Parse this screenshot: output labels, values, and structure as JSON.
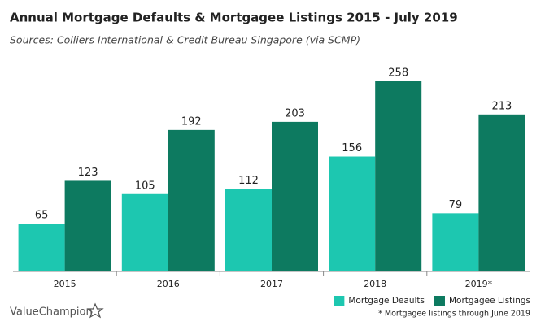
{
  "chart_data": {
    "type": "bar",
    "title": "Annual Mortgage Defaults & Mortgagee Listings 2015 - July 2019",
    "subtitle": "Sources: Colliers International & Credit Bureau Singapore (via SCMP)",
    "categories": [
      "2015",
      "2016",
      "2017",
      "2018",
      "2019*"
    ],
    "series": [
      {
        "name": "Mortgage Deaults",
        "color": "#1dc7b0",
        "values": [
          65,
          105,
          112,
          156,
          79
        ]
      },
      {
        "name": "Mortgagee Listings",
        "color": "#0d7a60",
        "values": [
          123,
          192,
          203,
          258,
          213
        ]
      }
    ],
    "footnote": "* Mortgagee listings through June 2019",
    "brand": "ValueChampion",
    "legend": "bottom-right"
  }
}
